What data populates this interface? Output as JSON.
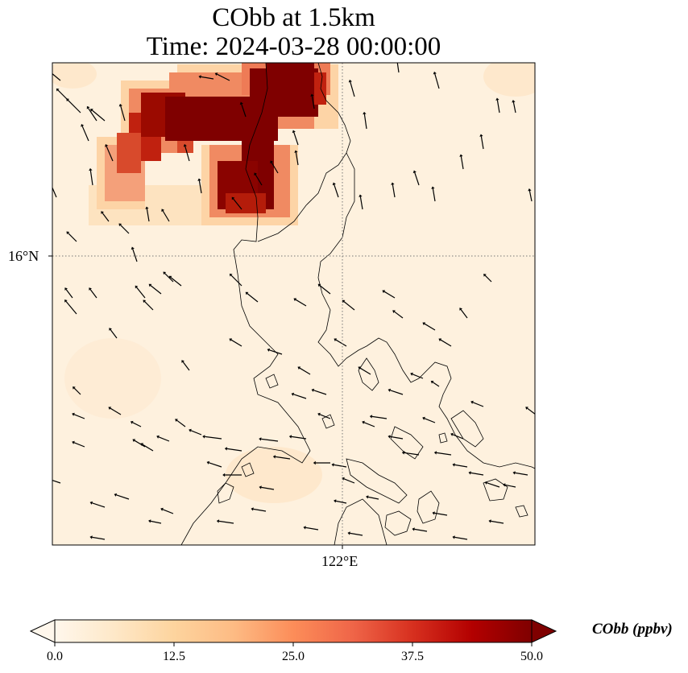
{
  "title": {
    "line1": "CObb at 1.5km",
    "line2": "Time: 2024-03-28 00:00:00"
  },
  "map": {
    "lat_label": "16°N",
    "lon_label": "122°E",
    "gridlines": "dotted",
    "coastlines": true,
    "wind_vectors": true
  },
  "colorbar": {
    "label": "CObb (ppbv)",
    "colormap": "OrRd",
    "min": 0.0,
    "max": 50.0,
    "ticks": [
      "0.0",
      "12.5",
      "25.0",
      "37.5",
      "50.0"
    ],
    "colors": [
      "#fff7ec",
      "#fee8c8",
      "#fdd49e",
      "#fdbb84",
      "#fc8d59",
      "#ef6548",
      "#d7301f",
      "#b30000",
      "#7f0000"
    ]
  },
  "colors": {
    "high_concentration": "#7f0000",
    "background": "#fef1de"
  }
}
